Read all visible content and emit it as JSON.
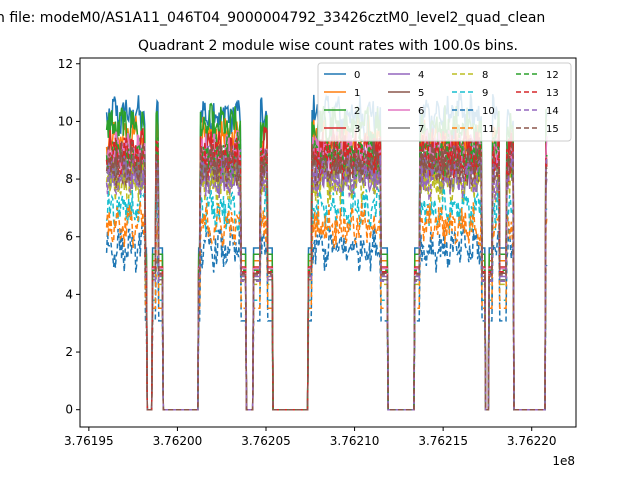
{
  "chart_data": {
    "type": "line",
    "suptitle": "n file: modeM0/AS1A11_046T04_9000004792_33426cztM0_level2_quad_clean",
    "title": "Quadrant 2 module wise count rates with 100.0s bins.",
    "xlabel": "",
    "ylabel": "",
    "x_offset_label": "1e8",
    "xlim": [
      3.761945,
      3.762225
    ],
    "ylim": [
      -0.6,
      12.2
    ],
    "x_ticks": [
      3.76195,
      3.762,
      3.76205,
      3.7621,
      3.76215,
      3.7622
    ],
    "x_tick_labels": [
      "3.76195",
      "3.76200",
      "3.76205",
      "3.76210",
      "3.76215",
      "3.76220"
    ],
    "y_ticks": [
      0,
      2,
      4,
      6,
      8,
      10,
      12
    ],
    "y_tick_labels": [
      "0",
      "2",
      "4",
      "6",
      "8",
      "10",
      "12"
    ],
    "grid": false,
    "legend_position": "top-right",
    "legend_columns": 4,
    "on_intervals_x": [
      [
        3.76196,
        3.761982
      ],
      [
        3.761988,
        3.7619895
      ],
      [
        3.762013,
        3.762036
      ],
      [
        3.762047,
        3.762051
      ],
      [
        3.762076,
        3.762115
      ],
      [
        3.762137,
        3.762172
      ],
      [
        3.762178,
        3.762182
      ],
      [
        3.762186,
        3.762209
      ]
    ],
    "off_intervals_x": [
      [
        3.761983,
        3.761986
      ],
      [
        3.761992,
        3.762012
      ],
      [
        3.762039,
        3.762043
      ],
      [
        3.762054,
        3.762074
      ],
      [
        3.762119,
        3.762134
      ],
      [
        3.762174,
        3.762176
      ],
      [
        3.762185,
        3.762185
      ],
      [
        3.76219,
        3.762208
      ]
    ],
    "series": [
      {
        "name": "0",
        "color": "#1f77b4",
        "dash": "solid",
        "level": 10.2
      },
      {
        "name": "1",
        "color": "#ff7f0e",
        "dash": "solid",
        "level": 9.4
      },
      {
        "name": "2",
        "color": "#2ca02c",
        "dash": "solid",
        "level": 9.8
      },
      {
        "name": "3",
        "color": "#d62728",
        "dash": "solid",
        "level": 9.0
      },
      {
        "name": "4",
        "color": "#9467bd",
        "dash": "solid",
        "level": 8.4
      },
      {
        "name": "5",
        "color": "#8c564b",
        "dash": "solid",
        "level": 8.6
      },
      {
        "name": "6",
        "color": "#e377c2",
        "dash": "solid",
        "level": 8.9
      },
      {
        "name": "7",
        "color": "#7f7f7f",
        "dash": "solid",
        "level": 8.2
      },
      {
        "name": "8",
        "color": "#bcbd22",
        "dash": "dashed",
        "level": 7.9
      },
      {
        "name": "9",
        "color": "#17becf",
        "dash": "dashed",
        "level": 6.9
      },
      {
        "name": "10",
        "color": "#1f77b4",
        "dash": "dashed",
        "level": 5.6
      },
      {
        "name": "11",
        "color": "#ff7f0e",
        "dash": "dashed",
        "level": 6.4
      },
      {
        "name": "12",
        "color": "#2ca02c",
        "dash": "dashed",
        "level": 8.8
      },
      {
        "name": "13",
        "color": "#d62728",
        "dash": "dashed",
        "level": 8.7
      },
      {
        "name": "14",
        "color": "#9467bd",
        "dash": "dashed",
        "level": 8.1
      },
      {
        "name": "15",
        "color": "#8c564b",
        "dash": "dashed",
        "level": 8.5
      }
    ]
  }
}
